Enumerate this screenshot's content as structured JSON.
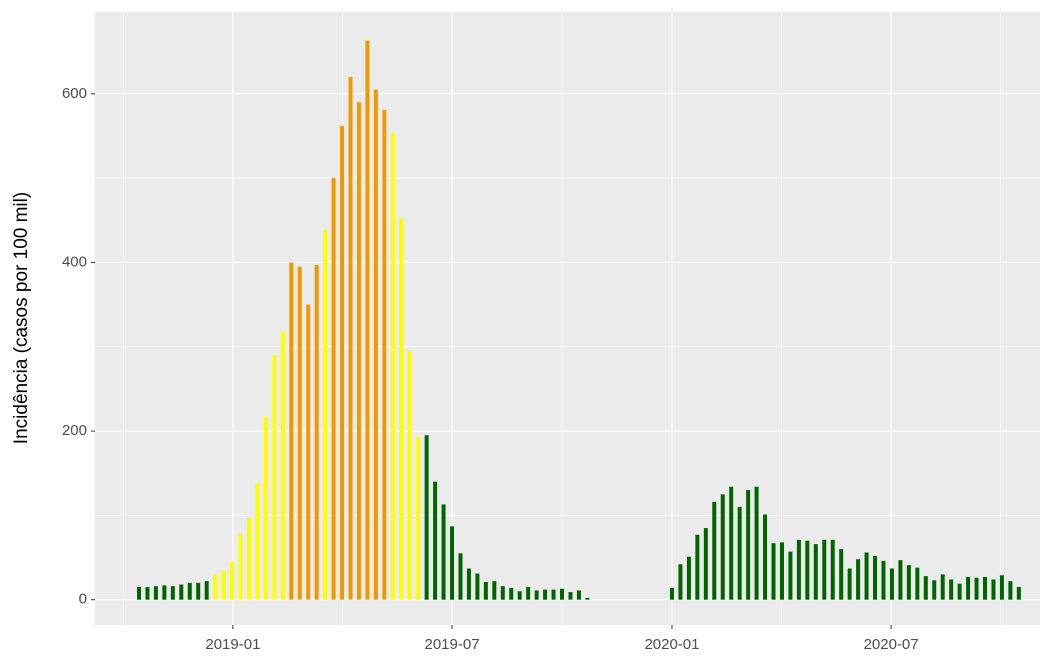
{
  "chart_data": {
    "type": "bar",
    "ylabel": "Incidência (casos por 100 mil)",
    "x": [
      0,
      1,
      2,
      3,
      4,
      5,
      6,
      7,
      8,
      9,
      10,
      11,
      12,
      13,
      14,
      15,
      16,
      17,
      18,
      19,
      20,
      21,
      22,
      23,
      24,
      25,
      26,
      27,
      28,
      29,
      30,
      31,
      32,
      33,
      34,
      35,
      36,
      37,
      38,
      39,
      40,
      41,
      42,
      43,
      44,
      45,
      46,
      47,
      48,
      49,
      50,
      51,
      52,
      53,
      63,
      64,
      65,
      66,
      67,
      68,
      69,
      70,
      71,
      72,
      73,
      74,
      75,
      76,
      77,
      78,
      79,
      80,
      81,
      82,
      83,
      84,
      85,
      86,
      87,
      88,
      89,
      90,
      91,
      92,
      93,
      94,
      95,
      96,
      97,
      98,
      99,
      100,
      101,
      102,
      103,
      104
    ],
    "values": [
      15,
      15,
      16,
      17,
      16,
      18,
      20,
      20,
      22,
      30,
      35,
      45,
      78,
      97,
      138,
      217,
      290,
      318,
      400,
      395,
      350,
      397,
      438,
      500,
      562,
      620,
      590,
      663,
      605,
      581,
      553,
      452,
      295,
      193,
      195,
      140,
      113,
      87,
      55,
      37,
      31,
      21,
      22,
      16,
      14,
      10,
      15,
      11,
      12,
      12,
      13,
      9,
      11,
      2,
      14,
      42,
      51,
      77,
      85,
      116,
      125,
      134,
      110,
      130,
      134,
      101,
      67,
      68,
      57,
      71,
      70,
      66,
      71,
      71,
      60,
      37,
      48,
      56,
      52,
      46,
      37,
      47,
      41,
      38,
      28,
      23,
      30,
      24,
      19,
      27,
      26,
      27,
      24,
      29,
      22,
      15
    ],
    "colors": [
      "#006400",
      "#006400",
      "#006400",
      "#006400",
      "#006400",
      "#006400",
      "#006400",
      "#006400",
      "#006400",
      "#ffff00",
      "#ffff00",
      "#ffff00",
      "#ffff00",
      "#ffff00",
      "#ffff00",
      "#ffff00",
      "#ffff00",
      "#ffff00",
      "#ee9a00",
      "#ee9a00",
      "#ee9a00",
      "#ee9a00",
      "#ffff00",
      "#ee9a00",
      "#ee9a00",
      "#ee9a00",
      "#ee9a00",
      "#ee9a00",
      "#ee9a00",
      "#ee9a00",
      "#ffff00",
      "#ffff00",
      "#ffff00",
      "#ffff00",
      "#006400",
      "#006400",
      "#006400",
      "#006400",
      "#006400",
      "#006400",
      "#006400",
      "#006400",
      "#006400",
      "#006400",
      "#006400",
      "#006400",
      "#006400",
      "#006400",
      "#006400",
      "#006400",
      "#006400",
      "#006400",
      "#006400",
      "#006400",
      "#006400",
      "#006400",
      "#006400",
      "#006400",
      "#006400",
      "#006400",
      "#006400",
      "#006400",
      "#006400",
      "#006400",
      "#006400",
      "#006400",
      "#006400",
      "#006400",
      "#006400",
      "#006400",
      "#006400",
      "#006400",
      "#006400",
      "#006400",
      "#006400",
      "#006400",
      "#006400",
      "#006400",
      "#006400",
      "#006400",
      "#006400",
      "#006400",
      "#006400",
      "#006400",
      "#006400",
      "#006400",
      "#006400",
      "#006400",
      "#006400",
      "#006400",
      "#006400",
      "#006400",
      "#006400",
      "#006400",
      "#006400",
      "#006400"
    ],
    "xlim": [
      -5.2,
      106.5
    ],
    "xticks": [
      {
        "value": 11.1,
        "label": "2019-01"
      },
      {
        "value": 37.0,
        "label": "2019-07"
      },
      {
        "value": 63.0,
        "label": "2020-01"
      },
      {
        "value": 88.9,
        "label": "2020-07"
      }
    ],
    "ylim": [
      -30,
      697
    ],
    "yticks": [
      0,
      200,
      400,
      600
    ],
    "grid": true
  }
}
